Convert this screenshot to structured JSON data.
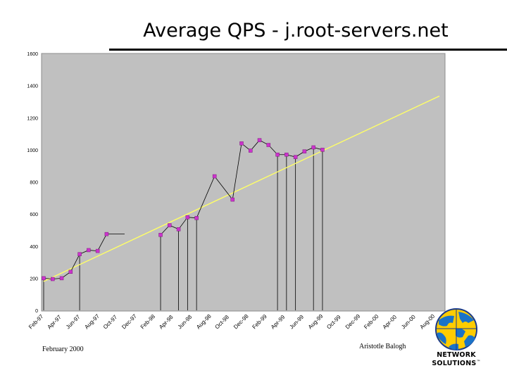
{
  "title": "Average QPS - j.root-servers.net",
  "footer": {
    "left": "February 2000",
    "right": "Aristotle Balogh"
  },
  "logo": {
    "line1": "NETWORK",
    "line2": "SOLUTIONS",
    "mark": "™"
  },
  "colors": {
    "plot_bg": "#c0c0c0",
    "series": "#000000",
    "marker": "#cc33cc",
    "trend": "#ffff66"
  },
  "chart_data": {
    "type": "line",
    "title": "Average QPS - j.root-servers.net",
    "xlabel": "",
    "ylabel": "",
    "ylim": [
      0,
      1600
    ],
    "yticks": [
      0,
      200,
      400,
      600,
      800,
      1000,
      1200,
      1400,
      1600
    ],
    "x_tick_labels": [
      "Feb-97",
      "Apr-97",
      "Jun-97",
      "Aug-97",
      "Oct-97",
      "Dec-97",
      "Feb-98",
      "Apr-98",
      "Jun-98",
      "Aug-98",
      "Oct-98",
      "Dec-98",
      "Feb-99",
      "Apr-99",
      "Jun-99",
      "Aug-99",
      "Oct-99",
      "Dec-99",
      "Feb-00",
      "Apr-00",
      "Jun-00",
      "Aug-00",
      "Oct-00"
    ],
    "grid": false,
    "series": [
      {
        "points": [
          [
            "1997-02",
            200
          ],
          [
            "1997-03",
            195
          ],
          [
            "1997-04",
            200
          ],
          [
            "1997-05",
            240
          ],
          [
            "1997-06",
            350
          ],
          [
            "1997-07",
            375
          ],
          [
            "1997-08",
            370
          ],
          [
            "1997-09",
            475
          ],
          [
            "1998-03",
            470
          ],
          [
            "1998-04",
            530
          ],
          [
            "1998-05",
            505
          ],
          [
            "1998-06",
            580
          ],
          [
            "1998-07",
            575
          ],
          [
            "1998-09",
            835
          ],
          [
            "1998-11",
            690
          ],
          [
            "1998-12",
            1040
          ],
          [
            "1999-01",
            995
          ],
          [
            "1999-02",
            1060
          ],
          [
            "1999-03",
            1030
          ],
          [
            "1999-04",
            970
          ],
          [
            "1999-05",
            970
          ],
          [
            "1999-06",
            955
          ],
          [
            "1999-07",
            990
          ],
          [
            "1999-08",
            1015
          ],
          [
            "1999-09",
            1000
          ]
        ]
      }
    ],
    "gap_segment": [
      [
        "1997-09",
        475
      ],
      [
        "1997-11",
        475
      ]
    ],
    "trendline": [
      [
        "1997-02",
        180
      ],
      [
        "2000-10",
        1335
      ]
    ]
  }
}
